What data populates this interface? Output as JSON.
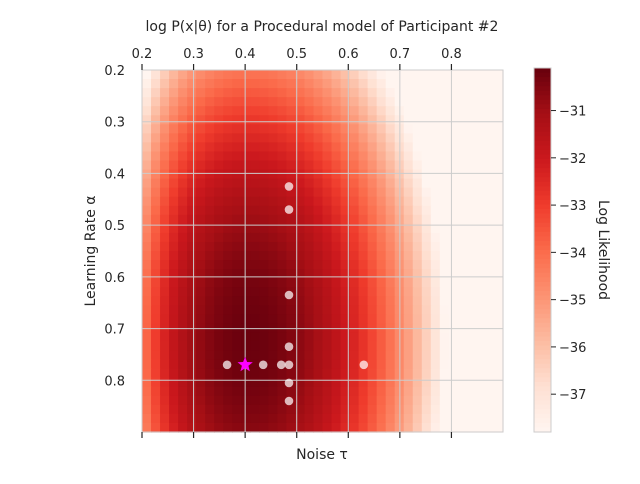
{
  "chart_data": {
    "type": "heatmap",
    "title": "log P(x|θ) for a Procedural model of Participant #2",
    "xlabel": "Noise τ",
    "ylabel": "Learning Rate α",
    "colorbar_label": "Log Likelihood",
    "colormap": "Reds",
    "x_range": [
      0.2,
      0.9
    ],
    "y_range": [
      0.2,
      0.9
    ],
    "y_inverted": true,
    "x_ticks": [
      0.2,
      0.3,
      0.4,
      0.5,
      0.6,
      0.7,
      0.8
    ],
    "x_tick_labels": [
      "0.2",
      "0.3",
      "0.4",
      "0.5",
      "0.6",
      "0.7",
      "0.8"
    ],
    "y_ticks": [
      0.2,
      0.3,
      0.4,
      0.5,
      0.6,
      0.7,
      0.8
    ],
    "y_tick_labels": [
      "0.2",
      "0.3",
      "0.4",
      "0.5",
      "0.6",
      "0.7",
      "0.8"
    ],
    "colorbar_range": [
      -37.8,
      -30.1
    ],
    "colorbar_ticks": [
      -37,
      -36,
      -35,
      -34,
      -33,
      -32,
      -31
    ],
    "colorbar_tick_labels": [
      "−37",
      "−36",
      "−35",
      "−34",
      "−33",
      "−32",
      "−31"
    ],
    "grid": true,
    "surface_samples": {
      "description_of_units": "tau, alpha, log likelihood",
      "peak": {
        "tau": 0.4,
        "alpha": 0.72,
        "value": -30.1
      },
      "minimum": {
        "tau": 0.9,
        "alpha": 0.2,
        "value": -37.8
      }
    },
    "samples": [
      {
        "tau": 0.485,
        "alpha": 0.425
      },
      {
        "tau": 0.485,
        "alpha": 0.47
      },
      {
        "tau": 0.485,
        "alpha": 0.635
      },
      {
        "tau": 0.485,
        "alpha": 0.735
      },
      {
        "tau": 0.365,
        "alpha": 0.77
      },
      {
        "tau": 0.435,
        "alpha": 0.77
      },
      {
        "tau": 0.47,
        "alpha": 0.77
      },
      {
        "tau": 0.485,
        "alpha": 0.77
      },
      {
        "tau": 0.63,
        "alpha": 0.77
      },
      {
        "tau": 0.485,
        "alpha": 0.805
      },
      {
        "tau": 0.485,
        "alpha": 0.84
      }
    ],
    "best_fit": {
      "tau": 0.4,
      "alpha": 0.77,
      "color": "#ff00ff",
      "marker": "star"
    },
    "sample_color": "#ffffff"
  }
}
